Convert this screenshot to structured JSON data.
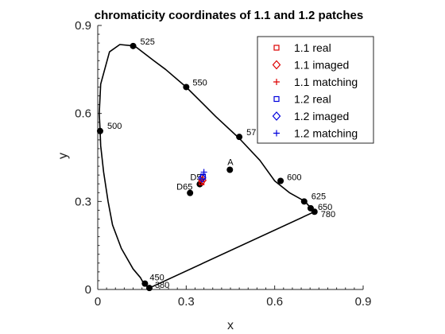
{
  "chart_data": {
    "type": "scatter",
    "title": "chromaticity coordinates of 1.1 and 1.2 patches",
    "xlabel": "x",
    "ylabel": "y",
    "xlim": [
      0,
      0.9
    ],
    "ylim": [
      0,
      0.9
    ],
    "xticks": [
      0,
      0.3,
      0.6,
      0.9
    ],
    "yticks": [
      0,
      0.3,
      0.6,
      0.9
    ],
    "xtick_labels": [
      "0",
      "0.3",
      "0.6",
      "0.9"
    ],
    "ytick_labels": [
      "0",
      "0.3",
      "0.6",
      "0.9"
    ],
    "grid": false,
    "legend_position": "top-right",
    "locus": [
      [
        0.175,
        0.005
      ],
      [
        0.165,
        0.012
      ],
      [
        0.155,
        0.022
      ],
      [
        0.145,
        0.04
      ],
      [
        0.12,
        0.07
      ],
      [
        0.08,
        0.14
      ],
      [
        0.05,
        0.22
      ],
      [
        0.035,
        0.3
      ],
      [
        0.02,
        0.4
      ],
      [
        0.01,
        0.49
      ],
      [
        0.008,
        0.54
      ],
      [
        0.005,
        0.6
      ],
      [
        0.01,
        0.7
      ],
      [
        0.04,
        0.81
      ],
      [
        0.075,
        0.835
      ],
      [
        0.125,
        0.83
      ],
      [
        0.19,
        0.78
      ],
      [
        0.23,
        0.75
      ],
      [
        0.3,
        0.69
      ],
      [
        0.35,
        0.64
      ],
      [
        0.4,
        0.59
      ],
      [
        0.48,
        0.515
      ],
      [
        0.55,
        0.44
      ],
      [
        0.6,
        0.37
      ],
      [
        0.65,
        0.33
      ],
      [
        0.703,
        0.3
      ],
      [
        0.72,
        0.28
      ],
      [
        0.735,
        0.265
      ]
    ],
    "locus_points": [
      {
        "label": "525",
        "x": 0.12,
        "y": 0.83
      },
      {
        "label": "550",
        "x": 0.3,
        "y": 0.69
      },
      {
        "label": "57",
        "x": 0.48,
        "y": 0.52
      },
      {
        "label": "600",
        "x": 0.62,
        "y": 0.37
      },
      {
        "label": "625",
        "x": 0.7,
        "y": 0.3
      },
      {
        "label": "650",
        "x": 0.722,
        "y": 0.277
      },
      {
        "label": "780",
        "x": 0.735,
        "y": 0.265
      },
      {
        "label": "500",
        "x": 0.008,
        "y": 0.54
      },
      {
        "label": "450",
        "x": 0.16,
        "y": 0.02
      },
      {
        "label": "380",
        "x": 0.175,
        "y": 0.005
      }
    ],
    "reference_points": [
      {
        "label": "A",
        "x": 0.448,
        "y": 0.408
      },
      {
        "label": "D50",
        "x": 0.346,
        "y": 0.359
      },
      {
        "label": "D65",
        "x": 0.313,
        "y": 0.329
      }
    ],
    "series": [
      {
        "name": "1.1 real",
        "marker": "square",
        "color": "#dd0000",
        "points": [
          [
            0.352,
            0.365
          ]
        ]
      },
      {
        "name": "1.1 imaged",
        "marker": "diamond",
        "color": "#dd0000",
        "points": [
          [
            0.355,
            0.372
          ]
        ]
      },
      {
        "name": "1.1 matching",
        "marker": "plus",
        "color": "#dd0000",
        "points": [
          [
            0.353,
            0.368
          ]
        ]
      },
      {
        "name": "1.2 real",
        "marker": "square",
        "color": "#0000dd",
        "points": [
          [
            0.357,
            0.385
          ]
        ]
      },
      {
        "name": "1.2 imaged",
        "marker": "diamond",
        "color": "#0000dd",
        "points": [
          [
            0.354,
            0.38
          ]
        ]
      },
      {
        "name": "1.2 matching",
        "marker": "plus",
        "color": "#0000dd",
        "points": [
          [
            0.36,
            0.4
          ]
        ]
      }
    ]
  }
}
